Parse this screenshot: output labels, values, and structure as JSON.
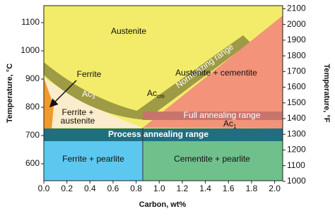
{
  "chart_data": {
    "type": "phase-diagram",
    "x_label": "Carbon, wt%",
    "y_label": "Temperature, °C",
    "y2_label": "Temperature, °F",
    "xlim": [
      0,
      2.07
    ],
    "xticks": [
      {
        "value": 0,
        "label": "0.0"
      },
      0.2,
      0.4,
      0.6,
      0.8,
      {
        "value": 1,
        "label": "1.0"
      },
      1.2,
      1.4,
      1.6,
      1.8,
      {
        "value": 2,
        "label": "2.0"
      }
    ],
    "ylim": [
      540,
      1160
    ],
    "yticks": [
      600,
      700,
      800,
      900,
      1000,
      1100
    ],
    "y2lim": [
      1004,
      2120
    ],
    "y2ticks": [
      1000,
      1100,
      1200,
      1300,
      1400,
      1500,
      1600,
      1700,
      1800,
      1900,
      2000,
      2100
    ],
    "annotations": {
      "austenite": "Austenite",
      "ferrite": "Ferrite",
      "ac3": {
        "text": "Ac",
        "sub": "3"
      },
      "accm": {
        "text": "Ac",
        "sub": "cm"
      },
      "ac1": {
        "text": "Ac",
        "sub": "1"
      },
      "normalizing": "Normalizing range",
      "austenite_cementite": "Austenite + cementite",
      "ferrite_austenite": [
        "Ferrite +",
        "austenite"
      ],
      "full_annealing": "Full annealing range",
      "process_annealing": "Process annealing range",
      "ferrite_pearlite": "Ferrite + pearlite",
      "cementite_pearlite": "Cementite + pearlite"
    }
  }
}
